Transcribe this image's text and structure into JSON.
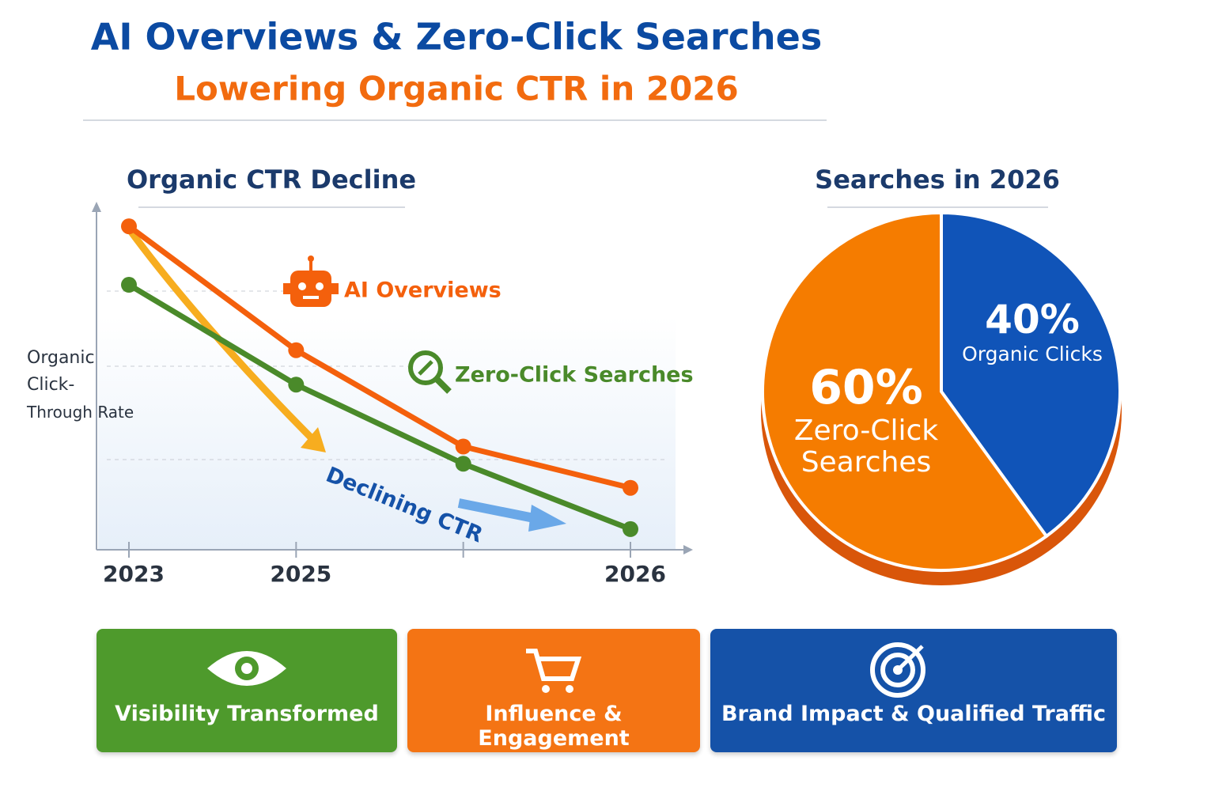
{
  "header": {
    "title": "AI Overviews & Zero-Click Searches",
    "subtitle": "Lowering Organic CTR in 2026"
  },
  "chart_data": [
    {
      "type": "line",
      "title": "Organic CTR Decline",
      "ylabel": [
        "Organic",
        "Click-",
        "Through Rate"
      ],
      "categories": [
        "2023",
        "2025",
        null,
        "2026"
      ],
      "series": [
        {
          "name": "AI Overviews",
          "color": "#f4600c",
          "values": [
            94,
            58,
            30,
            18
          ]
        },
        {
          "name": "Zero-Click Searches",
          "color": "#4a8a2a",
          "values": [
            77,
            48,
            25,
            6
          ]
        }
      ],
      "ylim": [
        0,
        100
      ],
      "annotation": "Declining CTR"
    },
    {
      "type": "pie",
      "title": "Searches in 2026",
      "categories": [
        "Organic Clicks",
        "Zero-Click Searches"
      ],
      "values": [
        40,
        60
      ],
      "value_labels": [
        "40%",
        "60%"
      ],
      "colors": [
        "#1054b8",
        "#f57c00"
      ]
    }
  ],
  "cards": [
    {
      "label": "Visibility Transformed",
      "color": "#4e9a2c"
    },
    {
      "label": "Influence & Engagement",
      "color": "#f47414"
    },
    {
      "label": "Brand Impact & Qualified Traffic",
      "color": "#1552a8"
    }
  ]
}
